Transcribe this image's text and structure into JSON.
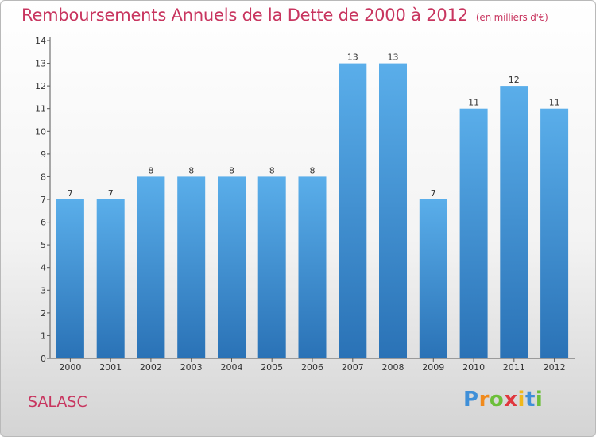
{
  "header": {
    "title": "Remboursements Annuels de la Dette de 2000 à 2012",
    "unit": "(en milliers d'€)"
  },
  "footer": {
    "municipality": "SALASC",
    "brand": [
      "P",
      "r",
      "o",
      "x",
      "i",
      "t",
      "i"
    ]
  },
  "colors": {
    "title": "#c8355f",
    "bar_light": "#5aaeea",
    "bar_dark": "#2a72b6",
    "brand": [
      "#3f8fd8",
      "#f08a1c",
      "#6cbf3a",
      "#e0373e",
      "#f0b81c",
      "#3f8fd8",
      "#6cbf3a"
    ]
  },
  "chart_data": {
    "type": "bar",
    "title": "Remboursements Annuels de la Dette de 2000 à 2012",
    "subtitle": "(en milliers d'€)",
    "xlabel": "",
    "ylabel": "",
    "categories": [
      "2000",
      "2001",
      "2002",
      "2003",
      "2004",
      "2005",
      "2006",
      "2007",
      "2008",
      "2009",
      "2010",
      "2011",
      "2012"
    ],
    "values": [
      7,
      7,
      8,
      8,
      8,
      8,
      8,
      13,
      13,
      7,
      11,
      12,
      11
    ],
    "value_labels": [
      "7",
      "7",
      "8",
      "8",
      "8",
      "8",
      "8",
      "13",
      "13",
      "7",
      "11",
      "12",
      "11"
    ],
    "ylim": [
      0,
      14
    ],
    "yticks": [
      0,
      1,
      2,
      3,
      4,
      5,
      6,
      7,
      8,
      9,
      10,
      11,
      12,
      13,
      14
    ],
    "grid": false,
    "legend": "none"
  }
}
